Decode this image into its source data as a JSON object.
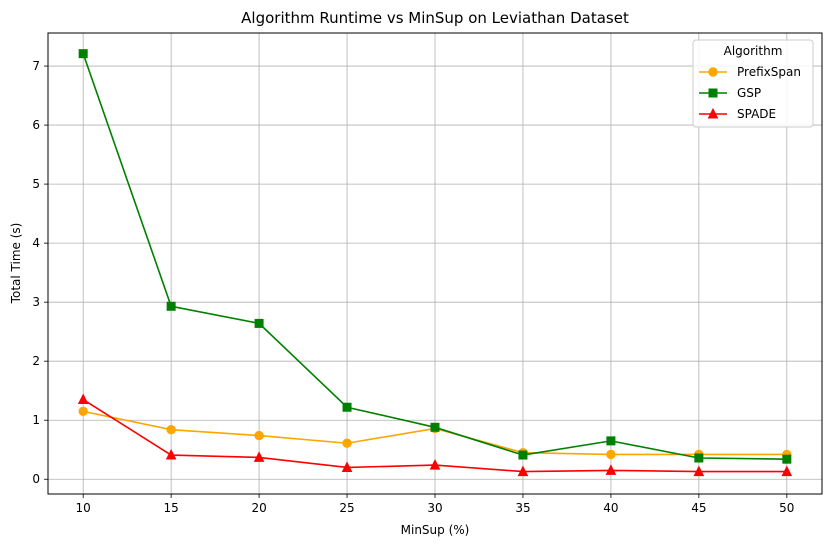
{
  "chart_data": {
    "type": "line",
    "title": "Algorithm Runtime vs MinSup on Leviathan Dataset",
    "xlabel": "MinSup (%)",
    "ylabel": "Total Time (s)",
    "x": [
      10,
      15,
      20,
      25,
      30,
      35,
      40,
      45,
      50
    ],
    "xticks": [
      10,
      15,
      20,
      25,
      30,
      35,
      40,
      45,
      50
    ],
    "yticks": [
      0,
      1,
      2,
      3,
      4,
      5,
      6,
      7
    ],
    "xlim": [
      8,
      52
    ],
    "ylim": [
      -0.25,
      7.56
    ],
    "grid": true,
    "legend": {
      "title": "Algorithm",
      "position": "top-right"
    },
    "series": [
      {
        "name": "PrefixSpan",
        "color": "#ffa500",
        "marker": "circle",
        "values": [
          1.15,
          0.84,
          0.74,
          0.61,
          0.86,
          0.45,
          0.42,
          0.42,
          0.42
        ]
      },
      {
        "name": "GSP",
        "color": "#008000",
        "marker": "square",
        "values": [
          7.21,
          2.93,
          2.64,
          1.22,
          0.88,
          0.41,
          0.65,
          0.36,
          0.34
        ]
      },
      {
        "name": "SPADE",
        "color": "#ff0000",
        "marker": "triangle",
        "values": [
          1.35,
          0.41,
          0.37,
          0.2,
          0.24,
          0.13,
          0.15,
          0.13,
          0.13
        ]
      }
    ]
  }
}
